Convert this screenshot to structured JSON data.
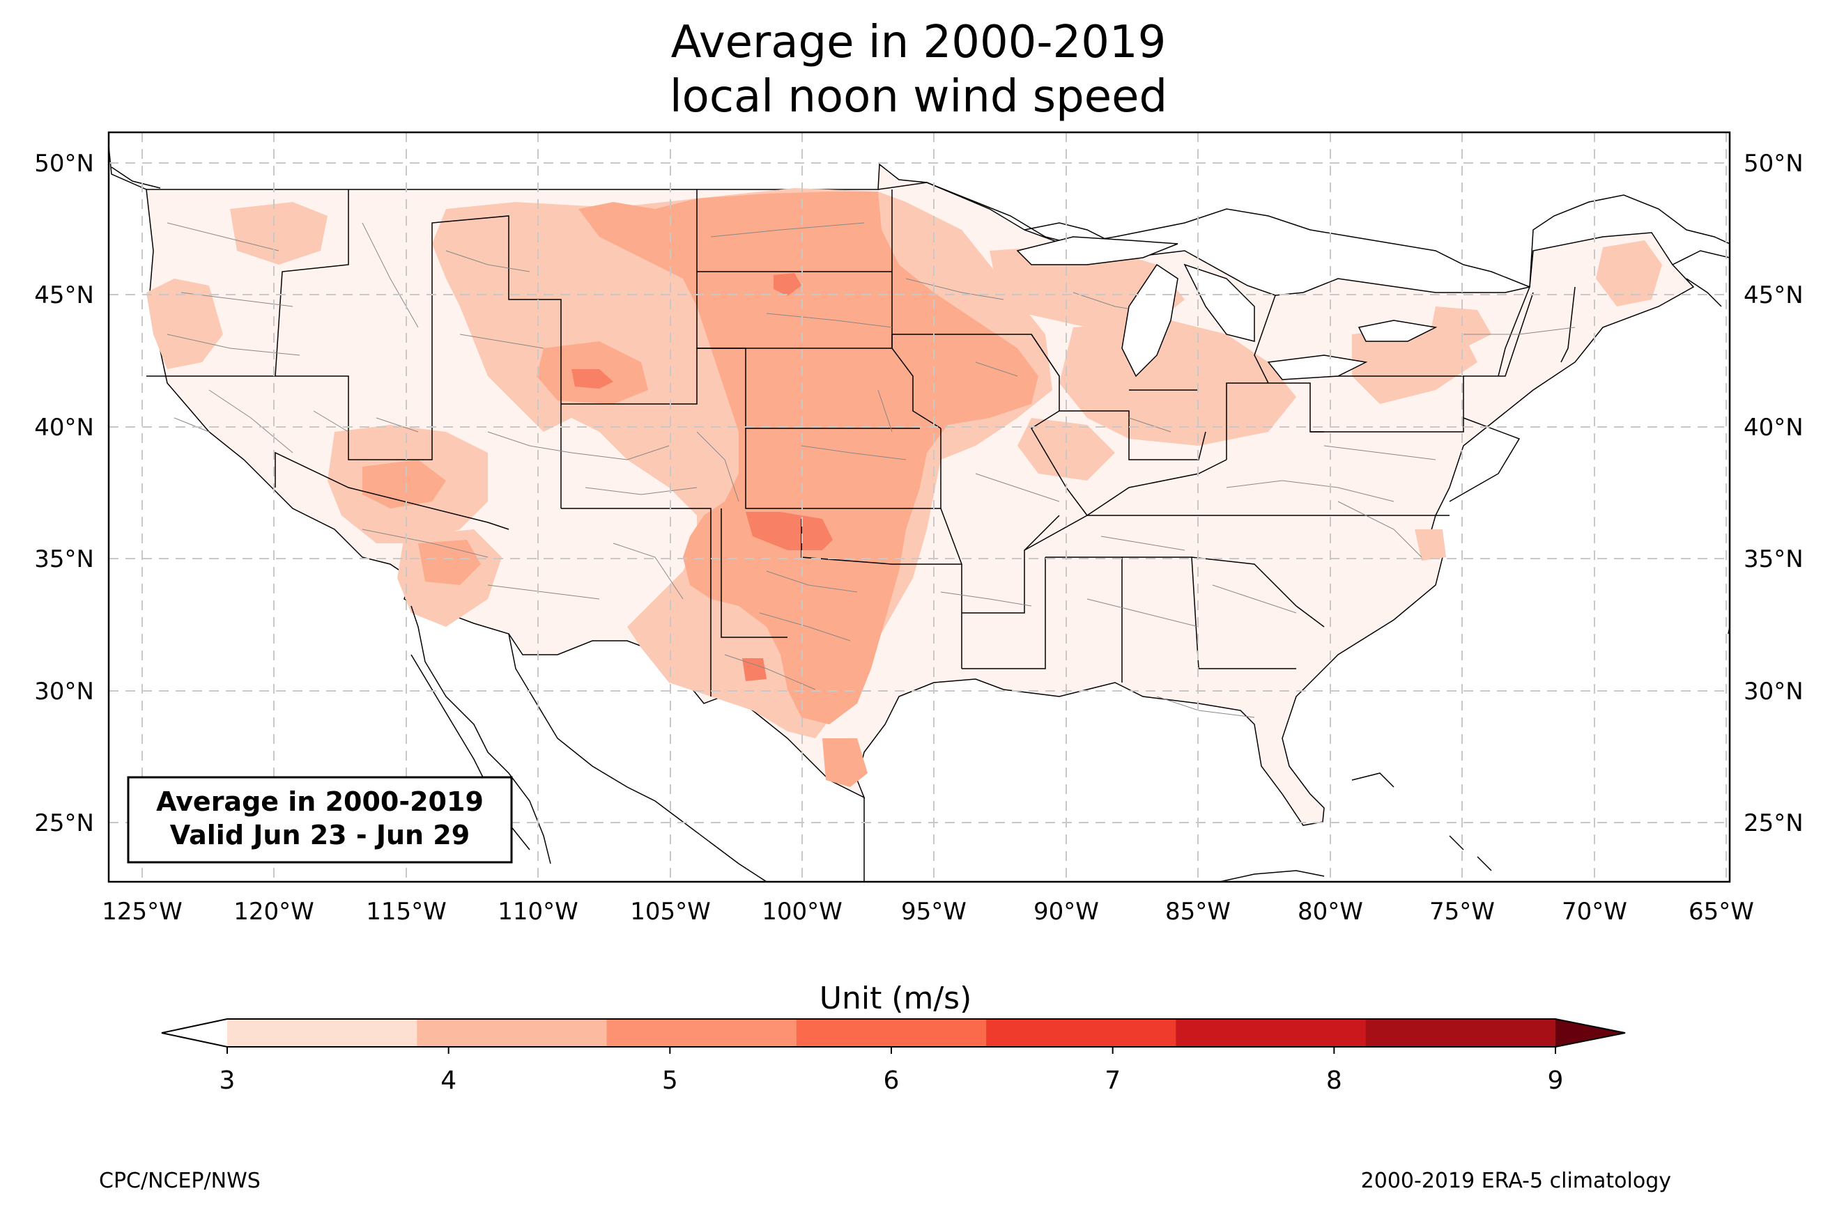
{
  "title": {
    "line1": "Average in 2000-2019",
    "line2": "local noon wind speed"
  },
  "map": {
    "lon_range": [
      -126.3,
      -64.9
    ],
    "lat_range": [
      22.8,
      51.2
    ],
    "lon_ticks": [
      "125°W",
      "120°W",
      "115°W",
      "110°W",
      "105°W",
      "100°W",
      "95°W",
      "90°W",
      "85°W",
      "80°W",
      "75°W",
      "70°W",
      "65°W"
    ],
    "lat_ticks": [
      "50°N",
      "45°N",
      "40°N",
      "35°N",
      "30°N",
      "25°N"
    ],
    "gridlines": true,
    "info_box": {
      "line1": "Average in 2000-2019",
      "line2": "Valid Jun 23 - Jun 29"
    }
  },
  "colorbar": {
    "title": "Unit (m/s)",
    "ticks": [
      "3",
      "4",
      "5",
      "6",
      "7",
      "8",
      "9"
    ],
    "colors": [
      "#fee0d2",
      "#fcbba1",
      "#fc9272",
      "#fb6a4a",
      "#ef3b2c",
      "#cb181d",
      "#a50f15"
    ],
    "under_color": "#ffffff",
    "over_color": "#67000d",
    "extend": "both"
  },
  "credits": {
    "left": "CPC/NCEP/NWS",
    "right": "2000-2019 ERA-5 climatology"
  }
}
